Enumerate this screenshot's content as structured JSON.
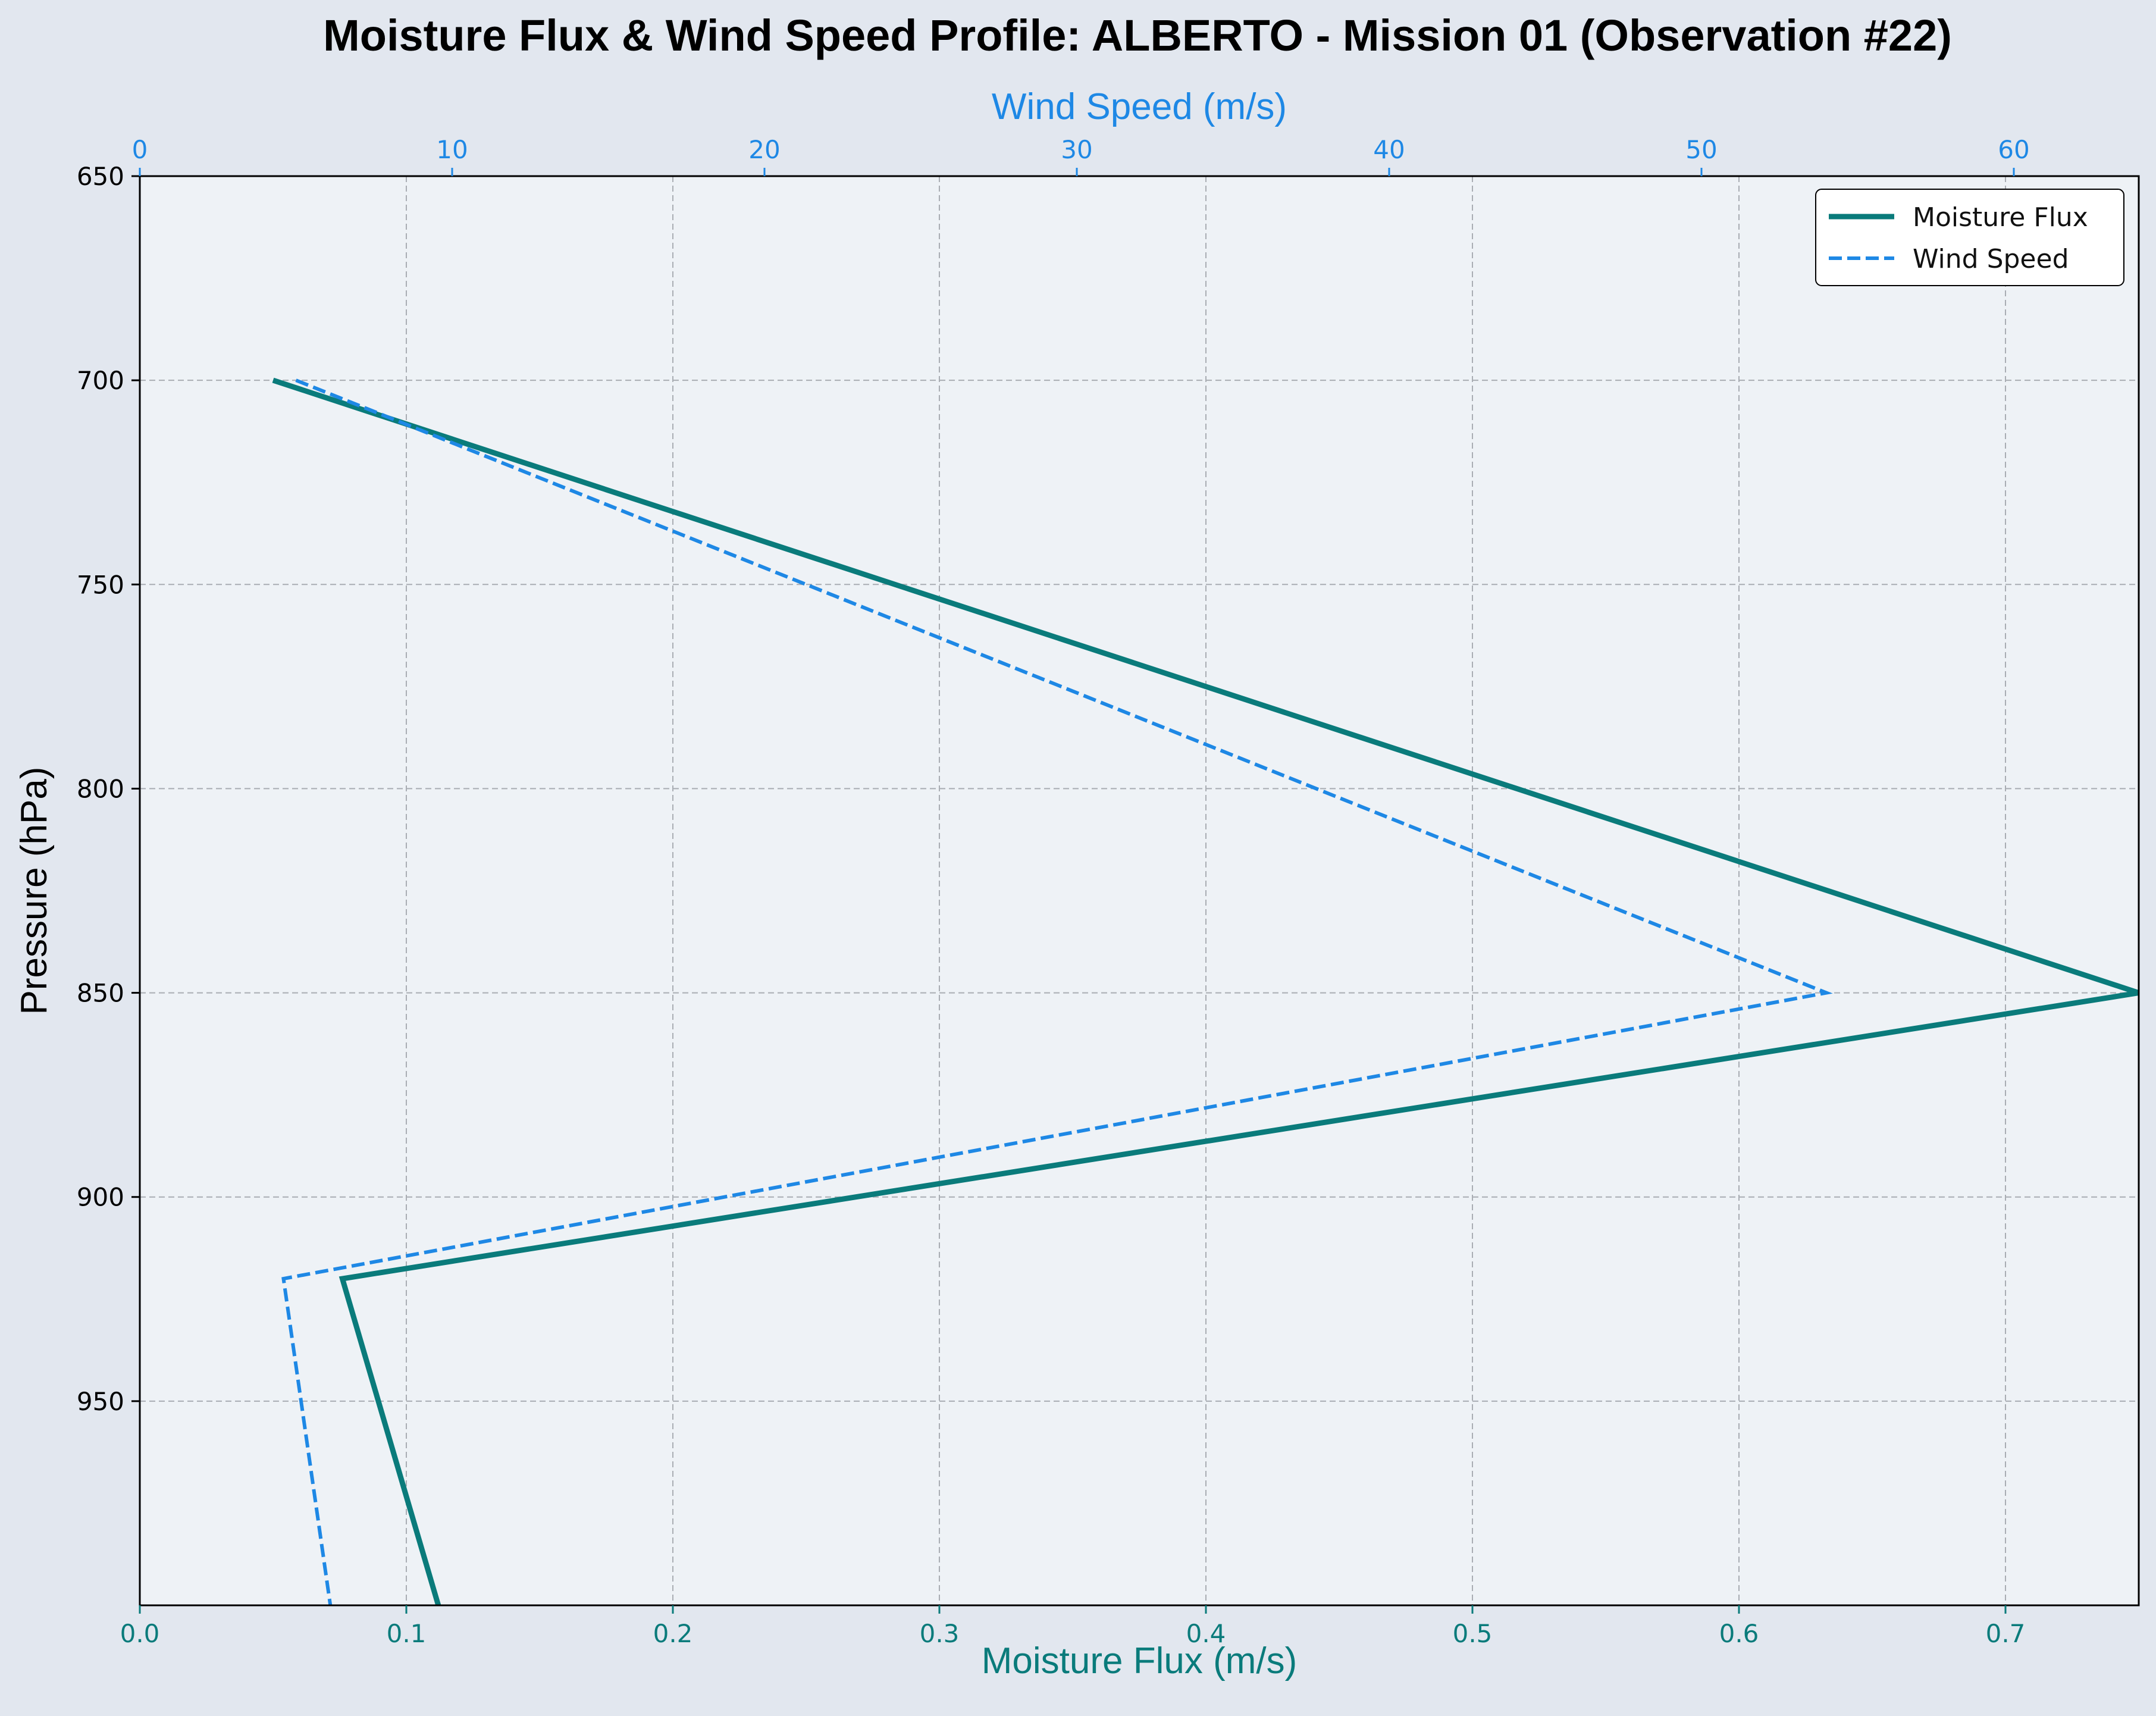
{
  "chart_data": {
    "type": "line",
    "title": "Moisture Flux & Wind Speed Profile: ALBERTO - Mission 01 (Observation #22)",
    "ylabel": "Pressure (hPa)",
    "xlabel_bottom": "Moisture Flux (m/s)",
    "xlabel_top": "Wind Speed (m/s)",
    "ylim": [
      1000,
      650
    ],
    "xlim_bottom": [
      0,
      0.75
    ],
    "xlim_top": [
      0,
      64
    ],
    "yticks": [
      650,
      700,
      750,
      800,
      850,
      900,
      950
    ],
    "xticks_bottom": [
      "0.0",
      "0.1",
      "0.2",
      "0.3",
      "0.4",
      "0.5",
      "0.6",
      "0.7"
    ],
    "xticks_top": [
      "0",
      "10",
      "20",
      "30",
      "40",
      "50",
      "60"
    ],
    "grid": true,
    "legend_position": "top-right",
    "series": [
      {
        "name": "Moisture Flux",
        "axis": "bottom",
        "color": "#0a7b7b",
        "style": "solid",
        "points": [
          [
            0.05,
            700
          ],
          [
            0.75,
            850
          ],
          [
            0.076,
            920
          ],
          [
            0.112,
            1000
          ]
        ]
      },
      {
        "name": "Wind Speed",
        "axis": "top",
        "color": "#1e88e5",
        "style": "dashed",
        "points": [
          [
            5,
            700
          ],
          [
            54,
            850
          ],
          [
            4.6,
            920
          ],
          [
            6.1,
            1000
          ]
        ]
      }
    ]
  }
}
